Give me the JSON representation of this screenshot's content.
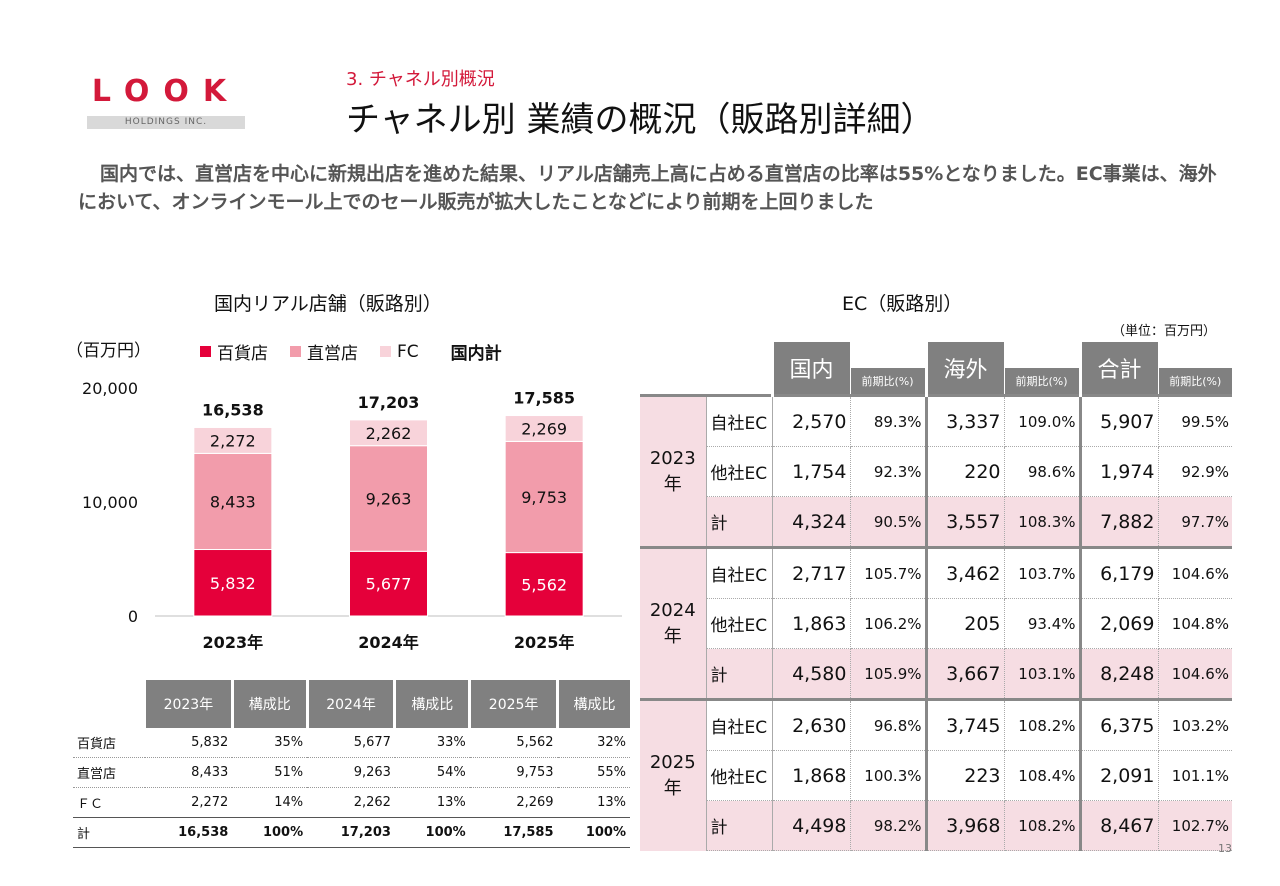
{
  "logo": {
    "text": "LOOK",
    "sub": "HOLDINGS INC."
  },
  "section": "3. チャネル別概況",
  "title": "チャネル別 業績の概況（販路別詳細）",
  "lead": "国内では、直営店を中心に新規出店を進めた結果、リアル店舗売上高に占める直営店の比率は55%となりました。EC事業は、海外において、オンラインモール上でのセール販売が拡大したことなどにより前期を上回りました",
  "left": {
    "title": "国内リアル店舗（販路別）",
    "unit": "（百万円）",
    "legend": {
      "dept": "百貨店",
      "direct": "直営店",
      "fc": "FC",
      "total": "国内計"
    },
    "colors": {
      "dept": "#e5003a",
      "direct": "#f29cab",
      "fc": "#f8d3da"
    }
  },
  "chart_data": {
    "type": "bar",
    "stacked": true,
    "title": "国内リアル店舗（販路別）",
    "ylabel": "（百万円）",
    "ylim": [
      0,
      20000
    ],
    "yticks": [
      "0",
      "10,000",
      "20,000"
    ],
    "categories": [
      "2023年",
      "2024年",
      "2025年"
    ],
    "series": [
      {
        "name": "百貨店",
        "values": [
          5832,
          5677,
          5562
        ],
        "labels": [
          "5,832",
          "5,677",
          "5,562"
        ]
      },
      {
        "name": "直営店",
        "values": [
          8433,
          9263,
          9753
        ],
        "labels": [
          "8,433",
          "9,263",
          "9,753"
        ]
      },
      {
        "name": "FC",
        "values": [
          2272,
          2262,
          2269
        ],
        "labels": [
          "2,272",
          "2,262",
          "2,269"
        ]
      }
    ],
    "totals": [
      16538,
      17203,
      17585
    ],
    "total_labels": [
      "16,538",
      "17,203",
      "17,585"
    ]
  },
  "summary_table": {
    "headers": [
      "",
      "2023年",
      "構成比",
      "2024年",
      "構成比",
      "2025年",
      "構成比"
    ],
    "rows": [
      [
        "百貨店",
        "5,832",
        "35%",
        "5,677",
        "33%",
        "5,562",
        "32%"
      ],
      [
        "直営店",
        "8,433",
        "51%",
        "9,263",
        "54%",
        "9,753",
        "55%"
      ],
      [
        "ＦＣ",
        "2,272",
        "14%",
        "2,262",
        "13%",
        "2,269",
        "13%"
      ],
      [
        "計",
        "16,538",
        "100%",
        "17,203",
        "100%",
        "17,585",
        "100%"
      ]
    ]
  },
  "ec": {
    "title": "EC（販路別）",
    "unit": "（単位：百万円）",
    "headers": {
      "domestic": "国内",
      "overseas": "海外",
      "total": "合計",
      "yoy": "前期比(%)"
    },
    "blocks": [
      {
        "year_a": "2023",
        "year_b": "年",
        "rows": [
          [
            "自社EC",
            "2,570",
            "89.3%",
            "3,337",
            "109.0%",
            "5,907",
            "99.5%"
          ],
          [
            "他社EC",
            "1,754",
            "92.3%",
            "220",
            "98.6%",
            "1,974",
            "92.9%"
          ],
          [
            "計",
            "4,324",
            "90.5%",
            "3,557",
            "108.3%",
            "7,882",
            "97.7%"
          ]
        ]
      },
      {
        "year_a": "2024",
        "year_b": "年",
        "rows": [
          [
            "自社EC",
            "2,717",
            "105.7%",
            "3,462",
            "103.7%",
            "6,179",
            "104.6%"
          ],
          [
            "他社EC",
            "1,863",
            "106.2%",
            "205",
            "93.4%",
            "2,069",
            "104.8%"
          ],
          [
            "計",
            "4,580",
            "105.9%",
            "3,667",
            "103.1%",
            "8,248",
            "104.6%"
          ]
        ]
      },
      {
        "year_a": "2025",
        "year_b": "年",
        "rows": [
          [
            "自社EC",
            "2,630",
            "96.8%",
            "3,745",
            "108.2%",
            "6,375",
            "103.2%"
          ],
          [
            "他社EC",
            "1,868",
            "100.3%",
            "223",
            "108.4%",
            "2,091",
            "101.1%"
          ],
          [
            "計",
            "4,498",
            "98.2%",
            "3,968",
            "108.2%",
            "8,467",
            "102.7%"
          ]
        ]
      }
    ]
  },
  "page_number": "13"
}
